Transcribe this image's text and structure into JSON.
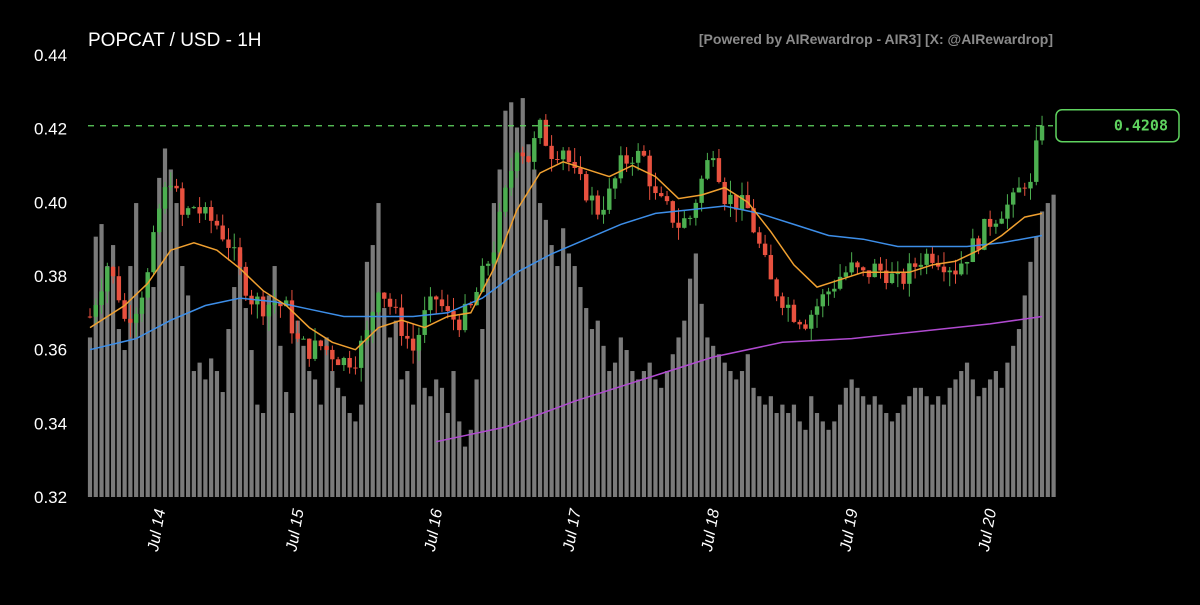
{
  "title": "POPCAT / USD - 1H",
  "attribution": "[Powered by AIRewardrop - AIR3] [X: @AIRewardrop]",
  "chart_data": {
    "type": "candlestick",
    "ylim": [
      0.32,
      0.44
    ],
    "yticks": [
      "0.44",
      "0.42",
      "0.40",
      "0.38",
      "0.36",
      "0.34",
      "0.32"
    ],
    "xticks": [
      {
        "label": "Jul 14",
        "hour": 12
      },
      {
        "label": "Jul 15",
        "hour": 36
      },
      {
        "label": "Jul 16",
        "hour": 60
      },
      {
        "label": "Jul 17",
        "hour": 84
      },
      {
        "label": "Jul 18",
        "hour": 108
      },
      {
        "label": "Jul 19",
        "hour": 132
      },
      {
        "label": "Jul 20",
        "hour": 156
      }
    ],
    "hours_total": 168,
    "current_price": 0.4208,
    "current_price_label": "0.4208",
    "colors": {
      "up": "#4caf50",
      "down": "#e8513f",
      "ema_short": "#f0a030",
      "ema_mid": "#3d8ee8",
      "ema_long": "#b04ad0",
      "volume": "#7a7a7a",
      "price_line": "#5fd35f"
    },
    "price_path": [
      [
        0,
        0.369
      ],
      [
        3,
        0.383
      ],
      [
        5,
        0.375
      ],
      [
        6,
        0.368
      ],
      [
        8,
        0.372
      ],
      [
        10,
        0.38
      ],
      [
        12,
        0.398
      ],
      [
        14,
        0.407
      ],
      [
        16,
        0.396
      ],
      [
        18,
        0.399
      ],
      [
        20,
        0.396
      ],
      [
        22,
        0.394
      ],
      [
        24,
        0.389
      ],
      [
        26,
        0.381
      ],
      [
        28,
        0.374
      ],
      [
        30,
        0.372
      ],
      [
        32,
        0.373
      ],
      [
        34,
        0.371
      ],
      [
        36,
        0.362
      ],
      [
        38,
        0.36
      ],
      [
        40,
        0.361
      ],
      [
        42,
        0.359
      ],
      [
        44,
        0.357
      ],
      [
        46,
        0.358
      ],
      [
        48,
        0.364
      ],
      [
        50,
        0.378
      ],
      [
        52,
        0.372
      ],
      [
        54,
        0.366
      ],
      [
        56,
        0.36
      ],
      [
        58,
        0.369
      ],
      [
        60,
        0.374
      ],
      [
        62,
        0.369
      ],
      [
        64,
        0.368
      ],
      [
        66,
        0.371
      ],
      [
        68,
        0.38
      ],
      [
        70,
        0.388
      ],
      [
        72,
        0.402
      ],
      [
        74,
        0.416
      ],
      [
        76,
        0.412
      ],
      [
        78,
        0.42
      ],
      [
        80,
        0.414
      ],
      [
        82,
        0.415
      ],
      [
        84,
        0.407
      ],
      [
        86,
        0.403
      ],
      [
        88,
        0.398
      ],
      [
        90,
        0.402
      ],
      [
        92,
        0.41
      ],
      [
        94,
        0.413
      ],
      [
        96,
        0.412
      ],
      [
        98,
        0.401
      ],
      [
        100,
        0.398
      ],
      [
        102,
        0.394
      ],
      [
        104,
        0.396
      ],
      [
        106,
        0.406
      ],
      [
        108,
        0.415
      ],
      [
        110,
        0.402
      ],
      [
        112,
        0.4
      ],
      [
        114,
        0.398
      ],
      [
        116,
        0.388
      ],
      [
        118,
        0.378
      ],
      [
        120,
        0.374
      ],
      [
        122,
        0.37
      ],
      [
        124,
        0.368
      ],
      [
        126,
        0.372
      ],
      [
        128,
        0.376
      ],
      [
        130,
        0.38
      ],
      [
        132,
        0.382
      ],
      [
        134,
        0.38
      ],
      [
        136,
        0.382
      ],
      [
        138,
        0.381
      ],
      [
        140,
        0.378
      ],
      [
        142,
        0.381
      ],
      [
        144,
        0.385
      ],
      [
        146,
        0.386
      ],
      [
        148,
        0.384
      ],
      [
        150,
        0.382
      ],
      [
        152,
        0.386
      ],
      [
        154,
        0.39
      ],
      [
        156,
        0.395
      ],
      [
        158,
        0.398
      ],
      [
        160,
        0.4
      ],
      [
        162,
        0.406
      ],
      [
        163,
        0.404
      ],
      [
        164,
        0.414
      ],
      [
        165,
        0.4208
      ]
    ],
    "ema_short_path": [
      [
        0,
        0.366
      ],
      [
        6,
        0.372
      ],
      [
        10,
        0.378
      ],
      [
        14,
        0.387
      ],
      [
        18,
        0.389
      ],
      [
        22,
        0.387
      ],
      [
        26,
        0.382
      ],
      [
        30,
        0.376
      ],
      [
        34,
        0.372
      ],
      [
        38,
        0.366
      ],
      [
        42,
        0.362
      ],
      [
        46,
        0.36
      ],
      [
        50,
        0.366
      ],
      [
        54,
        0.368
      ],
      [
        58,
        0.366
      ],
      [
        62,
        0.369
      ],
      [
        66,
        0.37
      ],
      [
        70,
        0.382
      ],
      [
        74,
        0.398
      ],
      [
        78,
        0.408
      ],
      [
        82,
        0.411
      ],
      [
        86,
        0.409
      ],
      [
        90,
        0.407
      ],
      [
        94,
        0.41
      ],
      [
        98,
        0.407
      ],
      [
        102,
        0.401
      ],
      [
        106,
        0.402
      ],
      [
        110,
        0.404
      ],
      [
        114,
        0.4
      ],
      [
        118,
        0.392
      ],
      [
        122,
        0.383
      ],
      [
        126,
        0.377
      ],
      [
        130,
        0.379
      ],
      [
        134,
        0.381
      ],
      [
        138,
        0.381
      ],
      [
        142,
        0.381
      ],
      [
        146,
        0.383
      ],
      [
        150,
        0.384
      ],
      [
        154,
        0.387
      ],
      [
        158,
        0.391
      ],
      [
        162,
        0.396
      ],
      [
        165,
        0.397
      ]
    ],
    "ema_mid_path": [
      [
        0,
        0.36
      ],
      [
        8,
        0.363
      ],
      [
        14,
        0.368
      ],
      [
        20,
        0.372
      ],
      [
        26,
        0.374
      ],
      [
        32,
        0.373
      ],
      [
        38,
        0.371
      ],
      [
        44,
        0.369
      ],
      [
        50,
        0.369
      ],
      [
        56,
        0.369
      ],
      [
        62,
        0.37
      ],
      [
        68,
        0.374
      ],
      [
        74,
        0.381
      ],
      [
        80,
        0.386
      ],
      [
        86,
        0.39
      ],
      [
        92,
        0.394
      ],
      [
        98,
        0.397
      ],
      [
        104,
        0.398
      ],
      [
        110,
        0.399
      ],
      [
        116,
        0.397
      ],
      [
        122,
        0.394
      ],
      [
        128,
        0.391
      ],
      [
        134,
        0.39
      ],
      [
        140,
        0.388
      ],
      [
        146,
        0.388
      ],
      [
        152,
        0.388
      ],
      [
        158,
        0.389
      ],
      [
        165,
        0.391
      ]
    ],
    "ema_long_path": [
      [
        60,
        0.335
      ],
      [
        72,
        0.339
      ],
      [
        84,
        0.346
      ],
      [
        96,
        0.352
      ],
      [
        108,
        0.358
      ],
      [
        120,
        0.362
      ],
      [
        132,
        0.363
      ],
      [
        144,
        0.365
      ],
      [
        156,
        0.367
      ],
      [
        165,
        0.369
      ]
    ],
    "volume_levels": [
      0.38,
      0.62,
      0.65,
      0.55,
      0.6,
      0.4,
      0.35,
      0.55,
      0.7,
      0.45,
      0.52,
      0.5,
      0.76,
      0.83,
      0.78,
      0.7,
      0.55,
      0.48,
      0.3,
      0.32,
      0.28,
      0.33,
      0.3,
      0.25,
      0.4,
      0.5,
      0.58,
      0.45,
      0.35,
      0.22,
      0.2,
      0.48,
      0.55,
      0.36,
      0.25,
      0.2,
      0.42,
      0.36,
      0.3,
      0.28,
      0.22,
      0.38,
      0.3,
      0.26,
      0.24,
      0.2,
      0.18,
      0.22,
      0.56,
      0.6,
      0.7,
      0.45,
      0.38,
      0.42,
      0.28,
      0.3,
      0.22,
      0.35,
      0.26,
      0.24,
      0.28,
      0.26,
      0.2,
      0.3,
      0.18,
      0.12,
      0.16,
      0.28,
      0.4,
      0.52,
      0.7,
      0.78,
      0.92,
      0.94,
      0.88,
      0.95,
      0.84,
      0.78,
      0.7,
      0.66,
      0.6,
      0.55,
      0.64,
      0.58,
      0.55,
      0.5,
      0.45,
      0.4,
      0.42,
      0.36,
      0.3,
      0.32,
      0.38,
      0.35,
      0.3,
      0.28,
      0.3,
      0.32,
      0.28,
      0.26,
      0.3,
      0.34,
      0.38,
      0.42,
      0.52,
      0.58,
      0.46,
      0.38,
      0.36,
      0.34,
      0.32,
      0.3,
      0.28,
      0.3,
      0.34,
      0.26,
      0.24,
      0.22,
      0.24,
      0.2,
      0.22,
      0.2,
      0.22,
      0.18,
      0.16,
      0.24,
      0.2,
      0.18,
      0.16,
      0.18,
      0.22,
      0.26,
      0.28,
      0.26,
      0.24,
      0.22,
      0.24,
      0.22,
      0.2,
      0.18,
      0.2,
      0.22,
      0.24,
      0.26,
      0.26,
      0.24,
      0.22,
      0.24,
      0.22,
      0.26,
      0.28,
      0.3,
      0.32,
      0.28,
      0.24,
      0.26,
      0.28,
      0.3,
      0.26,
      0.32,
      0.36,
      0.4,
      0.48,
      0.56,
      0.62,
      0.68,
      0.7,
      0.72
    ]
  }
}
